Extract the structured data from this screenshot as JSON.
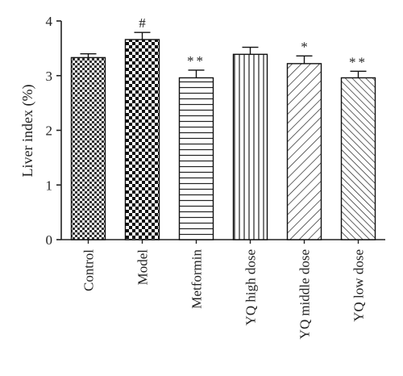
{
  "chart_data": {
    "type": "bar",
    "title": "",
    "xlabel": "",
    "ylabel": "Liver index (%)",
    "ylim": [
      0,
      4
    ],
    "yticks": [
      "0",
      "1",
      "2",
      "3",
      "4"
    ],
    "grid": false,
    "categories": [
      "Control",
      "Model",
      "Metformin",
      "YQ high dose",
      "YQ middle dose",
      "YQ low dose"
    ],
    "values": [
      3.33,
      3.66,
      2.96,
      3.39,
      3.22,
      2.96
    ],
    "errors": [
      0.07,
      0.13,
      0.14,
      0.13,
      0.14,
      0.12
    ],
    "annotations": [
      "",
      "#",
      "**",
      "",
      "*",
      "**"
    ],
    "patterns": [
      "small-checker",
      "large-checker",
      "horizontal-lines",
      "vertical-lines",
      "diagonal-lines",
      "diagonal-lines-dense"
    ]
  }
}
